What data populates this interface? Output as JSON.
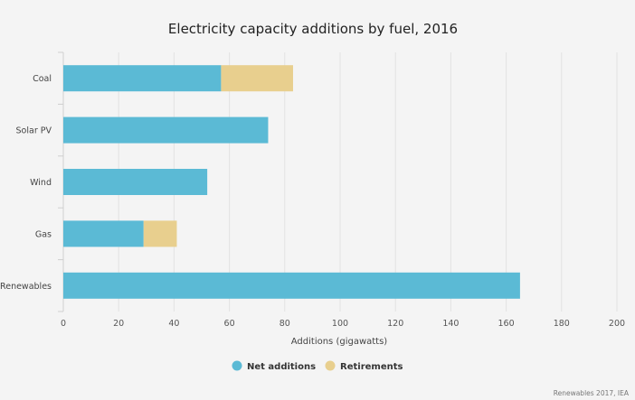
{
  "chart_data": {
    "type": "bar",
    "orientation": "horizontal",
    "stacked": true,
    "title": "Electricity capacity additions by fuel, 2016",
    "xlabel": "Additions (gigawatts)",
    "ylabel": "",
    "categories": [
      "Coal",
      "Solar PV",
      "Wind",
      "Gas",
      "Renewables"
    ],
    "series": [
      {
        "name": "Net additions",
        "color": "#5bbad5",
        "values": [
          57,
          74,
          52,
          29,
          165
        ]
      },
      {
        "name": "Retirements",
        "color": "#e8cf8e",
        "values": [
          26,
          0,
          0,
          12,
          0
        ]
      }
    ],
    "xlim": [
      0,
      200
    ],
    "xticks": [
      0,
      20,
      40,
      60,
      80,
      100,
      120,
      140,
      160,
      180,
      200
    ],
    "grid": true,
    "legend_position": "bottom-center",
    "source": "Renewables 2017, IEA"
  }
}
